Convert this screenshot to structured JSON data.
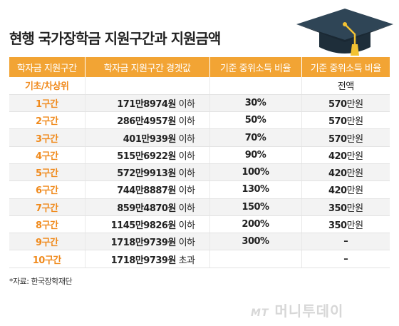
{
  "title": "현행 국가장학금 지원구간과 지원금액",
  "headers": [
    "학자금 지원구간",
    "학자금 지원구간 경곗값",
    "기준 중위소득 비율",
    "기준 중위소득 비율"
  ],
  "rows": [
    {
      "band": "기초/차상위",
      "threshold": "",
      "unit": "",
      "ratio": "",
      "amount": "전액",
      "amount_unit": ""
    },
    {
      "band": "1구간",
      "threshold": "171만8974원",
      "unit": " 이하",
      "ratio": "30%",
      "amount": "570",
      "amount_unit": "만원"
    },
    {
      "band": "2구간",
      "threshold": "286만4957원",
      "unit": " 이하",
      "ratio": "50%",
      "amount": "570",
      "amount_unit": "만원"
    },
    {
      "band": "3구간",
      "threshold": "401만939원",
      "unit": " 이하",
      "ratio": "70%",
      "amount": "570",
      "amount_unit": "만원"
    },
    {
      "band": "4구간",
      "threshold": "515만6922원",
      "unit": " 이하",
      "ratio": "90%",
      "amount": "420",
      "amount_unit": "만원"
    },
    {
      "band": "5구간",
      "threshold": "572만9913원",
      "unit": " 이하",
      "ratio": "100%",
      "amount": "420",
      "amount_unit": "만원"
    },
    {
      "band": "6구간",
      "threshold": "744만8887원",
      "unit": " 이하",
      "ratio": "130%",
      "amount": "420",
      "amount_unit": "만원"
    },
    {
      "band": "7구간",
      "threshold": "859만4870원",
      "unit": " 이하",
      "ratio": "150%",
      "amount": "350",
      "amount_unit": "만원"
    },
    {
      "band": "8구간",
      "threshold": "1145만9826원",
      "unit": " 이하",
      "ratio": "200%",
      "amount": "350",
      "amount_unit": "만원"
    },
    {
      "band": "9구간",
      "threshold": "1718만9739원",
      "unit": " 이하",
      "ratio": "300%",
      "amount": "–",
      "amount_unit": ""
    },
    {
      "band": "10구간",
      "threshold": "1718만9739원",
      "unit": " 초과",
      "ratio": "",
      "amount": "–",
      "amount_unit": ""
    }
  ],
  "source": "*자료: 한국장학재단",
  "logo": {
    "mark": "MT",
    "name": "머니투데이"
  },
  "colors": {
    "header_bg": "#f2a434",
    "band_text": "#f08a1c",
    "row_shade": "#f3f3f3"
  },
  "icons": [
    "graduation-cap-icon"
  ]
}
